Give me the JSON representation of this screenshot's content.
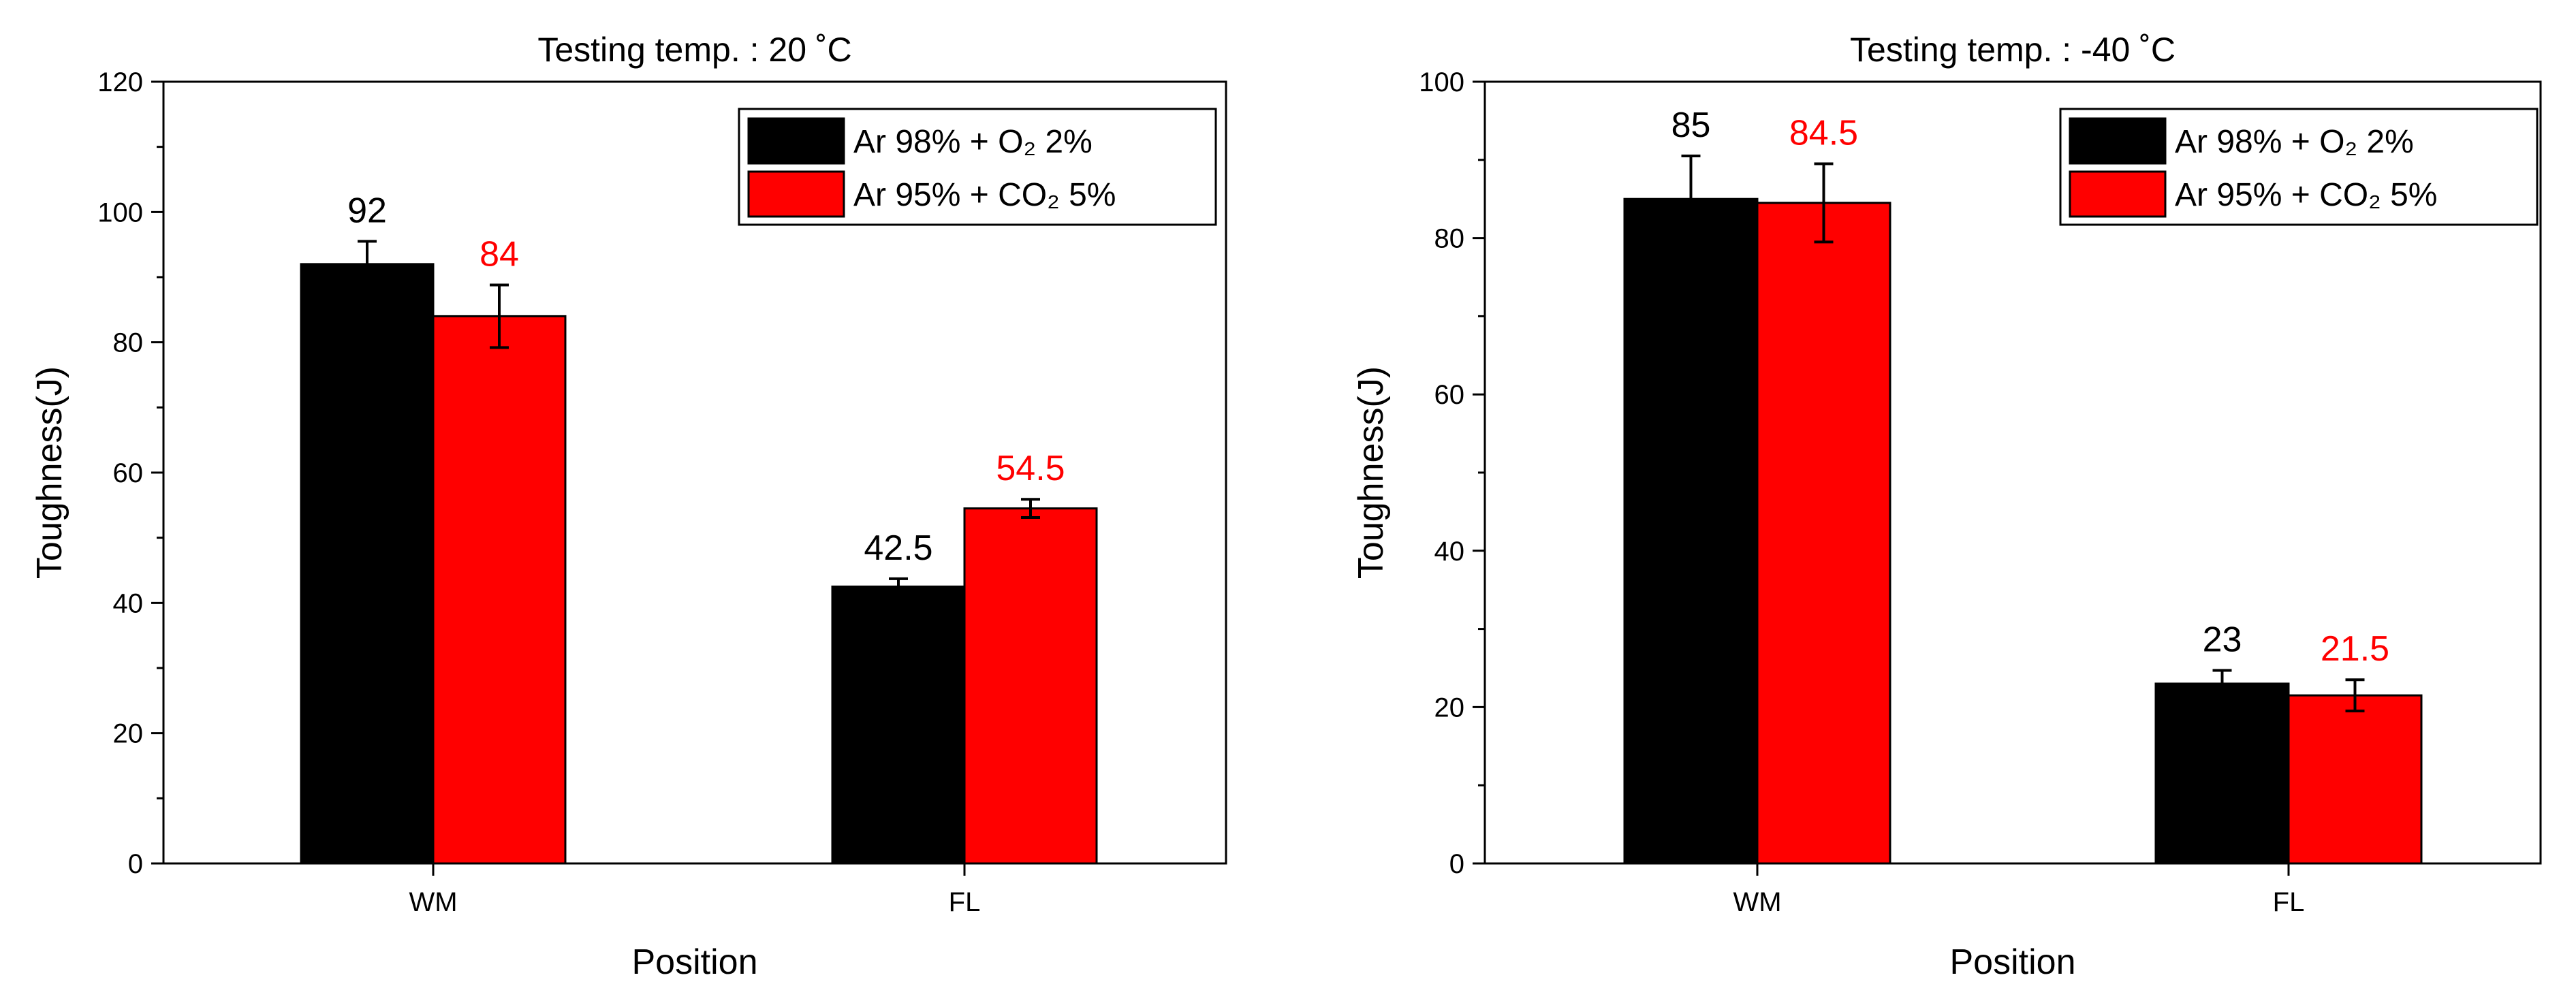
{
  "chart_data": [
    {
      "type": "bar",
      "title": "Testing temp. : 20 ˚C",
      "xlabel": "Position",
      "ylabel": "Toughness(J)",
      "ylim": [
        0,
        120
      ],
      "yticks": [
        "0",
        "20",
        "40",
        "60",
        "80",
        "100",
        "120"
      ],
      "categories": [
        "WM",
        "FL"
      ],
      "legend_position": "top-right",
      "series": [
        {
          "name": "Ar 98% + O₂ 2%",
          "color": "#000000",
          "label_color": "#000000",
          "values": [
            92,
            42.5
          ],
          "errors": [
            3.5,
            1.2
          ],
          "labels": [
            "92",
            "42.5"
          ]
        },
        {
          "name": "Ar 95% + CO₂ 5%",
          "color": "#ff0000",
          "label_color": "#ff0000",
          "values": [
            84,
            54.5
          ],
          "errors": [
            4.8,
            1.4
          ],
          "labels": [
            "84",
            "54.5"
          ]
        }
      ]
    },
    {
      "type": "bar",
      "title": "Testing temp. : -40 ˚C",
      "xlabel": "Position",
      "ylabel": "Toughness(J)",
      "ylim": [
        0,
        100
      ],
      "yticks": [
        "0",
        "20",
        "40",
        "60",
        "80",
        "100"
      ],
      "categories": [
        "WM",
        "FL"
      ],
      "legend_position": "top-right",
      "series": [
        {
          "name": "Ar 98% + O₂ 2%",
          "color": "#000000",
          "label_color": "#000000",
          "values": [
            85,
            23
          ],
          "errors": [
            5.5,
            1.7
          ],
          "labels": [
            "85",
            "23"
          ]
        },
        {
          "name": "Ar 95% + CO₂ 5%",
          "color": "#ff0000",
          "label_color": "#ff0000",
          "values": [
            84.5,
            21.5
          ],
          "errors": [
            5.0,
            2.0
          ],
          "labels": [
            "84.5",
            "21.5"
          ]
        }
      ]
    }
  ]
}
